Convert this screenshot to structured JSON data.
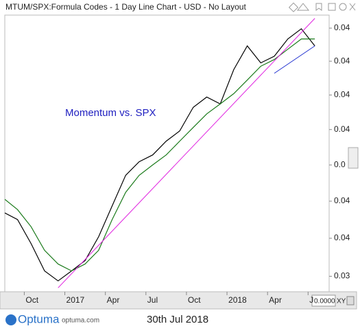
{
  "header": {
    "title": "MTUM/SPX:Formula Codes - 1 Day Line Chart - USD - No Layout"
  },
  "chart_data": {
    "type": "line",
    "annotation": "Momentum vs. SPX",
    "log_scale": true,
    "x": [
      "2016-08",
      "2016-09",
      "2016-10",
      "2016-11",
      "2016-12",
      "2017-01",
      "2017-02",
      "2017-03",
      "2017-04",
      "2017-05",
      "2017-06",
      "2017-07",
      "2017-08",
      "2017-09",
      "2017-10",
      "2017-11",
      "2017-12",
      "2018-01",
      "2018-02",
      "2018-03",
      "2018-04",
      "2018-05",
      "2018-06",
      "2018-07"
    ],
    "series": [
      {
        "color": "#000000",
        "values": [
          0.04118,
          0.041,
          0.04036,
          0.03964,
          0.03938,
          0.03964,
          0.03991,
          0.04054,
          0.04137,
          0.04221,
          0.04259,
          0.04278,
          0.04317,
          0.04346,
          0.04414,
          0.04444,
          0.04424,
          0.04525,
          0.04596,
          0.04545,
          0.04565,
          0.04617,
          0.04648,
          0.04596
        ]
      },
      {
        "color": "#1a7a1a",
        "values": [
          0.04155,
          0.04127,
          0.04081,
          0.04018,
          0.03982,
          0.03964,
          0.03982,
          0.04018,
          0.041,
          0.04174,
          0.04221,
          0.0425,
          0.04278,
          0.04317,
          0.04356,
          0.04395,
          0.04424,
          0.04454,
          0.04494,
          0.04535,
          0.04555,
          0.04586,
          0.04617,
          0.04617
        ]
      }
    ],
    "trendlines": [
      {
        "color": "#e020e0",
        "x": [
          "2016-12",
          "2018-07"
        ],
        "values": [
          0.0392,
          0.0468
        ]
      },
      {
        "color": "#2030d0",
        "x": [
          "2018-04",
          "2018-07"
        ],
        "values": [
          0.04514,
          0.04596
        ]
      }
    ],
    "ylim": [
      0.0391,
      0.0469
    ],
    "yticks": [
      {
        "value": 0.0465,
        "label": "0.04"
      },
      {
        "value": 0.0455,
        "label": "0.04"
      },
      {
        "value": 0.0445,
        "label": "0.04"
      },
      {
        "value": 0.0435,
        "label": "0.04"
      },
      {
        "value": 0.0425,
        "label": "0.0"
      },
      {
        "value": 0.0415,
        "label": "0.04"
      },
      {
        "value": 0.0405,
        "label": "0.04"
      },
      {
        "value": 0.0395,
        "label": "0.03"
      }
    ],
    "xticks": [
      {
        "value": "2016-10",
        "label": "Oct"
      },
      {
        "value": "2017-01",
        "label": "2017"
      },
      {
        "value": "2017-04",
        "label": "Apr"
      },
      {
        "value": "2017-07",
        "label": "Jul"
      },
      {
        "value": "2017-10",
        "label": "Oct"
      },
      {
        "value": "2018-01",
        "label": "2018"
      },
      {
        "value": "2018-04",
        "label": "Apr"
      },
      {
        "value": "2018-07",
        "label": "J"
      }
    ]
  },
  "footer": {
    "brand": "Optuma",
    "site": "optuma.com",
    "date": "30th Jul 2018",
    "readout": "0.0000",
    "mode": "XY"
  }
}
